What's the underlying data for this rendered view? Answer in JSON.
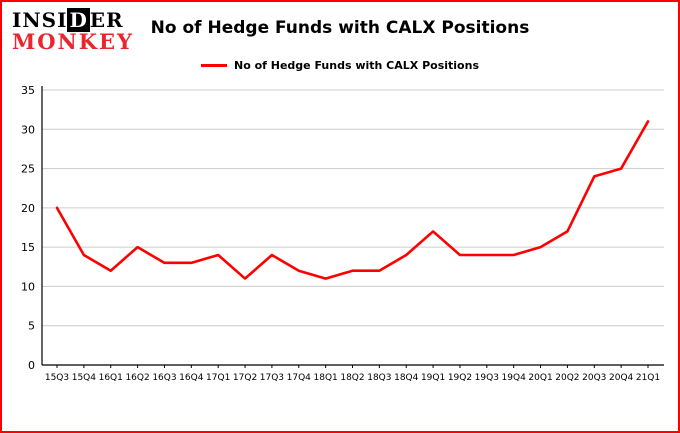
{
  "logo": {
    "insider_pre": "INSI",
    "insider_boxed": "D",
    "insider_post": "ER",
    "monkey": "MONKEY"
  },
  "header": {
    "title": "No of Hedge Funds with CALX Positions"
  },
  "legend": {
    "label": "No of Hedge Funds with CALX Positions"
  },
  "chart_data": {
    "type": "line",
    "title": "No of Hedge Funds with CALX Positions",
    "categories": [
      "15Q3",
      "15Q4",
      "16Q1",
      "16Q2",
      "16Q3",
      "16Q4",
      "17Q1",
      "17Q2",
      "17Q3",
      "17Q4",
      "18Q1",
      "18Q2",
      "18Q3",
      "18Q4",
      "19Q1",
      "19Q2",
      "19Q3",
      "19Q4",
      "20Q1",
      "20Q2",
      "20Q3",
      "20Q4",
      "21Q1"
    ],
    "values": [
      20,
      14,
      12,
      15,
      13,
      13,
      14,
      11,
      14,
      12,
      11,
      12,
      12,
      14,
      17,
      14,
      14,
      14,
      15,
      17,
      24,
      25,
      31
    ],
    "xlabel": "",
    "ylabel": "",
    "ylim": [
      0,
      35
    ],
    "ytick_step": 5,
    "grid": true,
    "legend_position": "top-center",
    "line_color": "#ff0000"
  },
  "colors": {
    "page_border": "#ff0000",
    "line": "#ff0000",
    "grid": "#cccccc",
    "axis": "#000000",
    "logo_red": "#e8262d"
  }
}
